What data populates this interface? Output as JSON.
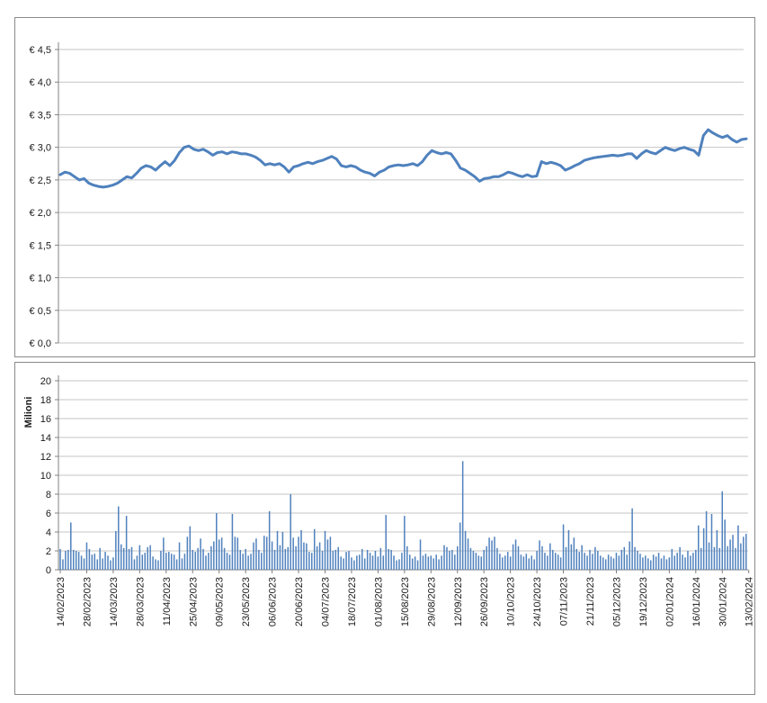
{
  "app": {
    "background": "#ffffff"
  },
  "colors": {
    "series_blue": "#4F81BD",
    "grid": "#c6c6c6",
    "axis": "#808080",
    "panel_border": "#8a8a8a",
    "text": "#1a1a1a"
  },
  "chart_data": [
    {
      "type": "line",
      "name": "share-price-chart",
      "title": "",
      "xlabel": "",
      "ylabel": "",
      "ylim": [
        0,
        4.5
      ],
      "grid": true,
      "legend_position": "none",
      "y_tick_labels": [
        "€ 4,5",
        "€ 4,0",
        "€ 3,5",
        "€ 3,0",
        "€ 2,5",
        "€ 2,0",
        "€ 1,5",
        "€ 1,0",
        "€ 0,5",
        "€ 0,0"
      ],
      "y_tick_values": [
        4.5,
        4.0,
        3.5,
        3.0,
        2.5,
        2.0,
        1.5,
        1.0,
        0.5,
        0.0
      ],
      "series": [
        {
          "name": "price_eur",
          "values": [
            2.58,
            2.62,
            2.6,
            2.55,
            2.5,
            2.52,
            2.45,
            2.42,
            2.4,
            2.39,
            2.4,
            2.42,
            2.45,
            2.5,
            2.55,
            2.53,
            2.6,
            2.68,
            2.72,
            2.7,
            2.65,
            2.72,
            2.78,
            2.72,
            2.8,
            2.92,
            3.0,
            3.02,
            2.97,
            2.95,
            2.97,
            2.93,
            2.88,
            2.92,
            2.93,
            2.9,
            2.93,
            2.92,
            2.9,
            2.9,
            2.88,
            2.85,
            2.8,
            2.73,
            2.75,
            2.73,
            2.75,
            2.7,
            2.62,
            2.7,
            2.72,
            2.75,
            2.77,
            2.75,
            2.78,
            2.8,
            2.83,
            2.86,
            2.82,
            2.72,
            2.7,
            2.72,
            2.7,
            2.65,
            2.62,
            2.6,
            2.56,
            2.62,
            2.65,
            2.7,
            2.72,
            2.73,
            2.72,
            2.73,
            2.75,
            2.72,
            2.78,
            2.88,
            2.95,
            2.92,
            2.9,
            2.92,
            2.9,
            2.8,
            2.68,
            2.65,
            2.6,
            2.55,
            2.48,
            2.52,
            2.53,
            2.55,
            2.55,
            2.58,
            2.62,
            2.6,
            2.57,
            2.55,
            2.58,
            2.55,
            2.56,
            2.78,
            2.75,
            2.77,
            2.75,
            2.72,
            2.65,
            2.68,
            2.72,
            2.75,
            2.8,
            2.82,
            2.84,
            2.85,
            2.86,
            2.87,
            2.88,
            2.87,
            2.88,
            2.9,
            2.9,
            2.83,
            2.9,
            2.95,
            2.92,
            2.9,
            2.95,
            3.0,
            2.97,
            2.95,
            2.98,
            3.0,
            2.97,
            2.95,
            2.88,
            3.18,
            3.27,
            3.22,
            3.18,
            3.15,
            3.18,
            3.12,
            3.08,
            3.12,
            3.13
          ]
        }
      ]
    },
    {
      "type": "bar",
      "name": "volume-chart",
      "title": "",
      "xlabel": "",
      "ylabel": "",
      "unit_label": "Milioni",
      "ylim": [
        0,
        20
      ],
      "grid": true,
      "legend_position": "none",
      "y_tick_labels": [
        "20",
        "18",
        "16",
        "14",
        "12",
        "10",
        "8",
        "6",
        "4",
        "2",
        "0"
      ],
      "y_tick_values": [
        20,
        18,
        16,
        14,
        12,
        10,
        8,
        6,
        4,
        2,
        0
      ],
      "x_tick_labels": [
        "14/02/2023",
        "28/02/2023",
        "14/03/2023",
        "28/03/2023",
        "11/04/2023",
        "25/04/2023",
        "09/05/2023",
        "23/05/2023",
        "06/06/2023",
        "20/06/2023",
        "04/07/2023",
        "18/07/2023",
        "01/08/2023",
        "15/08/2023",
        "29/08/2023",
        "12/09/2023",
        "26/09/2023",
        "10/10/2023",
        "24/10/2023",
        "07/11/2023",
        "21/11/2023",
        "05/12/2023",
        "19/12/2023",
        "02/01/2024",
        "16/01/2024",
        "30/01/2024",
        "13/02/2024"
      ],
      "values": [
        2.2,
        1.1,
        2.0,
        2.1,
        5.0,
        2.1,
        2.0,
        1.9,
        1.5,
        1.2,
        2.9,
        2.2,
        1.6,
        1.7,
        1.1,
        2.3,
        1.2,
        1.9,
        1.5,
        1.0,
        1.3,
        4.1,
        6.7,
        2.7,
        2.3,
        5.7,
        2.2,
        2.4,
        1.1,
        1.5,
        2.6,
        1.6,
        1.8,
        2.4,
        2.6,
        1.4,
        1.1,
        1.0,
        2.0,
        3.4,
        1.8,
        1.9,
        1.7,
        1.6,
        1.1,
        2.9,
        1.2,
        1.7,
        3.5,
        4.6,
        2.1,
        1.9,
        2.3,
        3.3,
        2.2,
        1.5,
        1.8,
        2.5,
        3.0,
        6.0,
        3.2,
        3.4,
        2.3,
        1.8,
        1.6,
        5.9,
        3.5,
        3.4,
        2.1,
        1.7,
        2.2,
        1.5,
        1.7,
        2.9,
        3.3,
        2.1,
        1.8,
        3.6,
        3.5,
        6.2,
        3.0,
        2.1,
        4.1,
        2.6,
        4.0,
        2.2,
        2.4,
        8.0,
        3.4,
        2.5,
        3.5,
        4.2,
        2.9,
        2.8,
        1.9,
        1.8,
        4.3,
        2.5,
        2.9,
        2.0,
        4.1,
        3.2,
        3.5,
        2.0,
        2.1,
        2.4,
        1.4,
        1.2,
        1.9,
        2.0,
        1.3,
        1.0,
        1.5,
        1.6,
        2.2,
        1.2,
        2.1,
        1.8,
        1.5,
        2.0,
        1.4,
        2.3,
        1.5,
        5.8,
        2.2,
        2.1,
        1.5,
        1.0,
        1.1,
        1.8,
        5.7,
        2.5,
        1.6,
        1.2,
        1.4,
        1.0,
        3.2,
        1.5,
        1.7,
        1.4,
        1.5,
        1.2,
        1.6,
        1.1,
        1.5,
        2.6,
        2.4,
        2.0,
        2.1,
        1.6,
        2.5,
        5.0,
        11.5,
        4.1,
        3.3,
        2.3,
        2.0,
        1.8,
        1.5,
        1.4,
        2.1,
        2.5,
        3.4,
        3.1,
        3.5,
        2.3,
        1.7,
        1.3,
        1.5,
        1.9,
        1.4,
        2.7,
        3.2,
        2.5,
        1.6,
        1.4,
        1.7,
        1.2,
        1.5,
        1.1,
        2.0,
        3.1,
        2.5,
        1.8,
        1.5,
        2.8,
        2.1,
        1.8,
        1.6,
        1.3,
        4.8,
        2.4,
        4.2,
        2.7,
        3.4,
        2.2,
        1.9,
        2.6,
        1.8,
        1.5,
        2.1,
        1.7,
        2.4,
        2.0,
        1.5,
        1.3,
        1.1,
        1.6,
        1.4,
        1.2,
        1.8,
        1.5,
        2.1,
        2.4,
        1.6,
        3.0,
        6.5,
        2.4,
        2.0,
        1.7,
        1.3,
        1.5,
        1.2,
        1.0,
        1.6,
        1.4,
        1.8,
        1.2,
        1.5,
        1.1,
        1.3,
        2.2,
        1.5,
        1.8,
        2.4,
        1.6,
        1.3,
        2.0,
        1.5,
        1.8,
        2.1,
        4.7,
        2.3,
        4.4,
        6.2,
        2.9,
        5.9,
        2.4,
        4.2,
        2.3,
        8.3,
        5.3,
        2.5,
        3.2,
        3.7,
        2.3,
        4.7,
        2.8,
        3.5,
        3.8
      ]
    }
  ]
}
